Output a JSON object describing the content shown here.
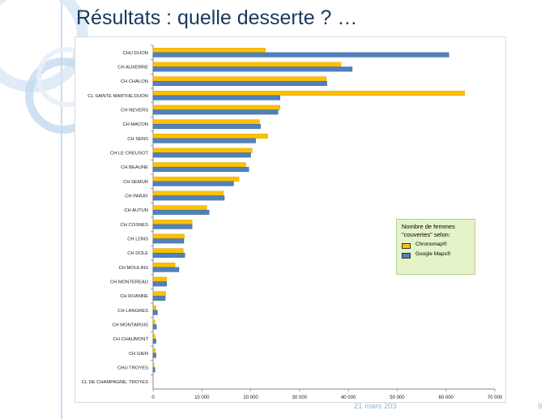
{
  "slide": {
    "title": "Résultats : quelle desserte ? …",
    "footer_date": "21 mars 203",
    "page_number": "9"
  },
  "legend": {
    "title": "Nombre de femmes \"couvertes\" selon:"
  },
  "chart_data": {
    "type": "bar",
    "orientation": "horizontal",
    "title": "",
    "xlabel": "",
    "ylabel": "",
    "xlim": [
      0,
      70000
    ],
    "xticks": [
      0,
      10000,
      20000,
      30000,
      40000,
      50000,
      60000,
      70000
    ],
    "xtick_labels": [
      "0",
      "10 000",
      "20 000",
      "30 000",
      "40 000",
      "50 000",
      "60 000",
      "70 000"
    ],
    "grid": false,
    "legend_position": "right",
    "categories": [
      "CHU DIJON",
      "CH AUXERRE",
      "CH CHALON",
      "CL SAINTE MARTHE,DIJON",
      "CH NEVERS",
      "CH MACON",
      "CH SENS",
      "CH LE CREUSOT",
      "CH BEAUNE",
      "CH SEMUR",
      "CH  PARAY",
      "CH AUTUN",
      "CH COSNES",
      "CH LONS",
      "CH  DOLE",
      "CH MOULINS",
      "CH MONTEREAU",
      "CH ROANNE",
      "CH LANGRES",
      "CH MONTARGIS",
      "CH CHAUMONT",
      "CH GIEN",
      "CHU TROYES",
      "CL DE CHAMPAGNE, TROYES"
    ],
    "series": [
      {
        "name": "Chronomap®",
        "color": "#ffc000",
        "border": "#c9a000",
        "values": [
          23000,
          38500,
          35500,
          63800,
          26000,
          21800,
          23500,
          20300,
          19000,
          17600,
          14400,
          11000,
          8000,
          6400,
          6200,
          4500,
          2800,
          2600,
          600,
          400,
          400,
          500,
          200,
          0
        ]
      },
      {
        "name": "Google Maps®",
        "color": "#4f81bd",
        "border": "#385d8a",
        "values": [
          60600,
          40800,
          35600,
          26000,
          25600,
          22000,
          21000,
          20000,
          19600,
          16500,
          14600,
          11500,
          8000,
          6300,
          6500,
          5300,
          2800,
          2500,
          900,
          700,
          600,
          600,
          400,
          0
        ]
      }
    ]
  }
}
